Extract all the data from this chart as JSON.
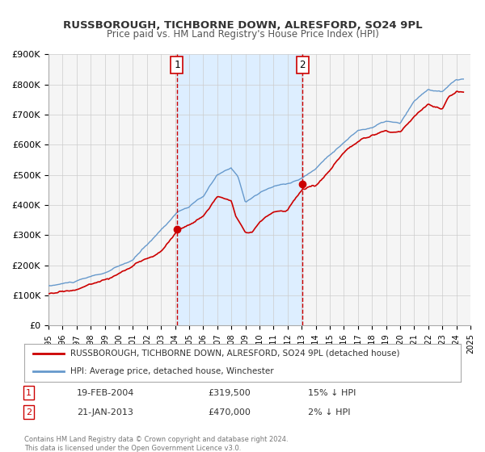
{
  "title": "RUSSBOROUGH, TICHBORNE DOWN, ALRESFORD, SO24 9PL",
  "subtitle": "Price paid vs. HM Land Registry's House Price Index (HPI)",
  "xlabel": "",
  "ylabel": "",
  "ylim": [
    0,
    900000
  ],
  "yticks": [
    0,
    100000,
    200000,
    300000,
    400000,
    500000,
    600000,
    700000,
    800000,
    900000
  ],
  "ytick_labels": [
    "£0",
    "£100K",
    "£200K",
    "£300K",
    "£400K",
    "£500K",
    "£600K",
    "£700K",
    "£800K",
    "£900K"
  ],
  "xlim_start": 1995.0,
  "xlim_end": 2025.0,
  "xticks": [
    1995,
    1996,
    1997,
    1998,
    1999,
    2000,
    2001,
    2002,
    2003,
    2004,
    2005,
    2006,
    2007,
    2008,
    2009,
    2010,
    2011,
    2012,
    2013,
    2014,
    2015,
    2016,
    2017,
    2018,
    2019,
    2020,
    2021,
    2022,
    2023,
    2024,
    2025
  ],
  "marker1_x": 2004.13,
  "marker1_y": 319500,
  "marker1_label": "1",
  "marker1_date": "19-FEB-2004",
  "marker1_price": "£319,500",
  "marker1_hpi": "15% ↓ HPI",
  "marker2_x": 2013.06,
  "marker2_y": 470000,
  "marker2_label": "2",
  "marker2_date": "21-JAN-2013",
  "marker2_price": "£470,000",
  "marker2_hpi": "2% ↓ HPI",
  "vline1_x": 2004.13,
  "vline2_x": 2013.06,
  "shade_color": "#ddeeff",
  "vline_color": "#cc0000",
  "hpi_line_color": "#6699cc",
  "price_line_color": "#cc0000",
  "legend_label1": "RUSSBOROUGH, TICHBORNE DOWN, ALRESFORD, SO24 9PL (detached house)",
  "legend_label2": "HPI: Average price, detached house, Winchester",
  "footnote": "Contains HM Land Registry data © Crown copyright and database right 2024.\nThis data is licensed under the Open Government Licence v3.0.",
  "background_color": "#ffffff",
  "plot_bg_color": "#f5f5f5",
  "grid_color": "#cccccc"
}
